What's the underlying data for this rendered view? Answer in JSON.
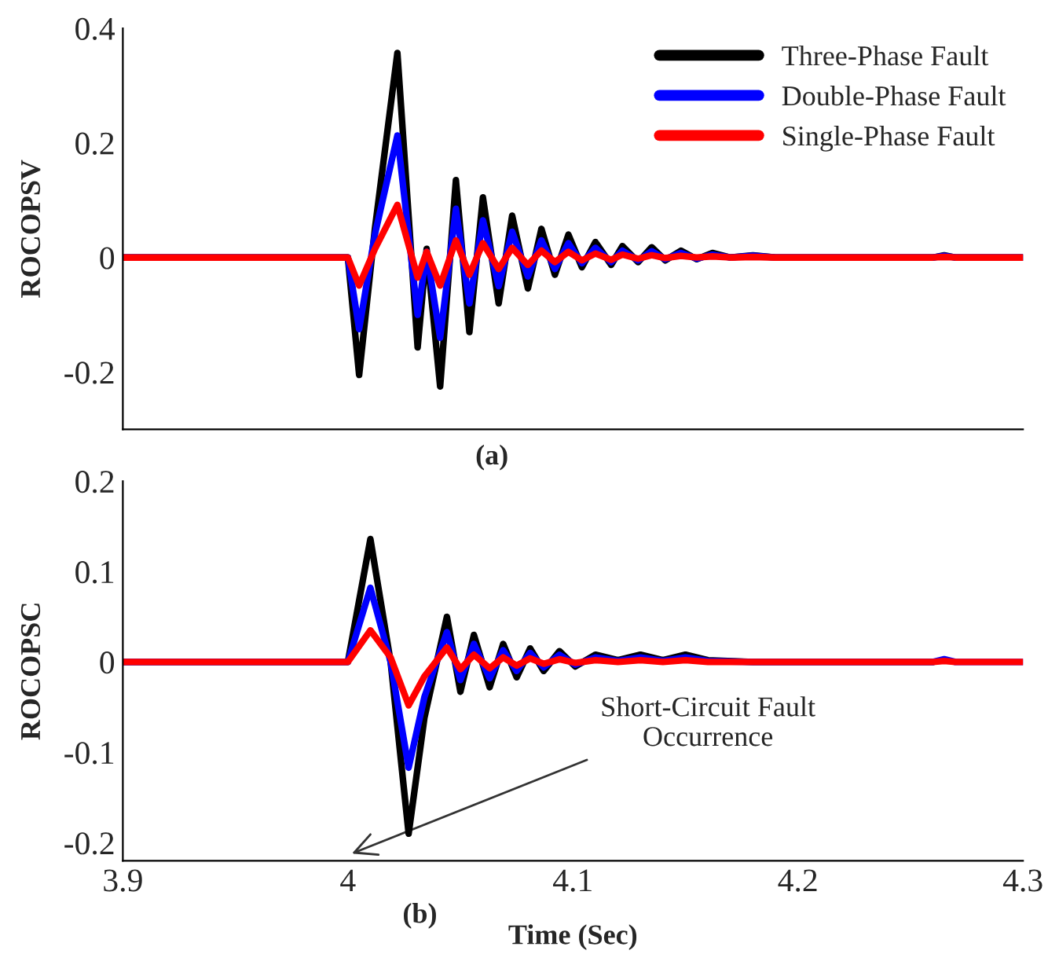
{
  "chart_data": [
    {
      "type": "line",
      "ylabel": "ROCOPSV",
      "annotations": [
        "(a)"
      ],
      "xlim": [
        3.9,
        4.3
      ],
      "xticks": [
        3.9,
        4,
        4.1,
        4.2,
        4.3
      ],
      "ylim": [
        -0.3,
        0.4
      ],
      "yticks": [
        -0.2,
        0,
        0.2,
        0.4
      ],
      "tick_labels": "y",
      "grid": false,
      "legend": "top right",
      "marker": "none",
      "line_style": "solid",
      "series": [
        {
          "name": "Three-Phase Fault",
          "color": "#000000",
          "x": [
            3.9,
            4.0,
            4.005,
            4.012,
            4.022,
            4.031,
            4.035,
            4.041,
            4.048,
            4.054,
            4.06,
            4.067,
            4.073,
            4.08,
            4.086,
            4.092,
            4.098,
            4.104,
            4.11,
            4.117,
            4.122,
            4.129,
            4.135,
            4.141,
            4.148,
            4.155,
            4.162,
            4.17,
            4.18,
            4.19,
            4.26,
            4.265,
            4.27,
            4.3
          ],
          "values": [
            0,
            0,
            -0.205,
            0.05,
            0.357,
            -0.157,
            0.015,
            -0.225,
            0.135,
            -0.13,
            0.105,
            -0.08,
            0.073,
            -0.054,
            0.05,
            -0.03,
            0.04,
            -0.017,
            0.027,
            -0.013,
            0.02,
            -0.008,
            0.018,
            -0.005,
            0.012,
            -0.003,
            0.008,
            0,
            0.004,
            0,
            0,
            0.004,
            0,
            0
          ]
        },
        {
          "name": "Double-Phase Fault",
          "color": "#0000ff",
          "x": [
            3.9,
            4.0,
            4.005,
            4.012,
            4.022,
            4.031,
            4.035,
            4.041,
            4.048,
            4.054,
            4.06,
            4.067,
            4.073,
            4.08,
            4.086,
            4.092,
            4.098,
            4.104,
            4.11,
            4.117,
            4.122,
            4.129,
            4.135,
            4.141,
            4.148,
            4.155,
            4.162,
            4.17,
            4.18,
            4.19,
            4.26,
            4.265,
            4.27,
            4.3
          ],
          "values": [
            0,
            0,
            -0.125,
            0.04,
            0.213,
            -0.1,
            0.01,
            -0.14,
            0.085,
            -0.08,
            0.065,
            -0.05,
            0.045,
            -0.033,
            0.03,
            -0.02,
            0.025,
            -0.01,
            0.017,
            -0.008,
            0.012,
            -0.005,
            0.011,
            -0.003,
            0.008,
            -0.002,
            0.005,
            0,
            0.003,
            0,
            0,
            0.003,
            0,
            0
          ]
        },
        {
          "name": "Single-Phase Fault",
          "color": "#ff0000",
          "x": [
            3.9,
            4.0,
            4.005,
            4.012,
            4.022,
            4.031,
            4.035,
            4.041,
            4.048,
            4.054,
            4.06,
            4.067,
            4.073,
            4.08,
            4.086,
            4.092,
            4.098,
            4.104,
            4.11,
            4.117,
            4.122,
            4.129,
            4.135,
            4.141,
            4.148,
            4.155,
            4.162,
            4.17,
            4.18,
            4.19,
            4.26,
            4.265,
            4.27,
            4.3
          ],
          "values": [
            0,
            0,
            -0.049,
            0.015,
            0.092,
            -0.035,
            0.01,
            -0.049,
            0.03,
            -0.03,
            0.025,
            -0.02,
            0.017,
            -0.013,
            0.012,
            -0.008,
            0.01,
            -0.005,
            0.007,
            -0.004,
            0.005,
            -0.002,
            0.004,
            -0.001,
            0.003,
            0,
            0.002,
            0,
            0.001,
            0,
            0,
            0.001,
            0,
            0
          ]
        }
      ]
    },
    {
      "type": "line",
      "ylabel": "ROCOPSC",
      "xlabel": "Time (Sec)",
      "annotations": [
        "(b)",
        "Short-Circuit Fault\nOccurrence"
      ],
      "xlim": [
        3.9,
        4.3
      ],
      "xticks": [
        3.9,
        4,
        4.1,
        4.2,
        4.3
      ],
      "ylim": [
        -0.22,
        0.2
      ],
      "yticks": [
        -0.2,
        -0.1,
        0,
        0.1,
        0.2
      ],
      "grid": false,
      "legend": false,
      "marker": "none",
      "line_style": "solid",
      "series": [
        {
          "color": "#000000",
          "x": [
            3.9,
            4.0,
            4.01,
            4.019,
            4.027,
            4.034,
            4.044,
            4.05,
            4.056,
            4.063,
            4.069,
            4.075,
            4.081,
            4.087,
            4.094,
            4.101,
            4.11,
            4.12,
            4.13,
            4.14,
            4.15,
            4.16,
            4.18,
            4.26
          ],
          "values": [
            0,
            0,
            0.136,
            0,
            -0.19,
            -0.062,
            0.05,
            -0.033,
            0.03,
            -0.028,
            0.02,
            -0.017,
            0.015,
            -0.01,
            0.012,
            -0.005,
            0.008,
            0.002,
            0.008,
            0.002,
            0.008,
            0.002,
            0,
            0
          ]
        },
        {
          "color": "#0000ff",
          "x": [
            3.9,
            4.0,
            4.01,
            4.019,
            4.027,
            4.034,
            4.044,
            4.05,
            4.056,
            4.063,
            4.069,
            4.075,
            4.081,
            4.087,
            4.094,
            4.101,
            4.11,
            4.12,
            4.13,
            4.14,
            4.15,
            4.16,
            4.18,
            4.26,
            4.265,
            4.27,
            4.3
          ],
          "values": [
            0,
            0,
            0.082,
            0,
            -0.117,
            -0.039,
            0.033,
            -0.02,
            0.02,
            -0.018,
            0.013,
            -0.01,
            0.01,
            -0.006,
            0.008,
            -0.003,
            0.005,
            0.001,
            0.005,
            0.001,
            0.005,
            0.001,
            0,
            0,
            0.003,
            0,
            0
          ]
        },
        {
          "color": "#ff0000",
          "x": [
            3.9,
            4.0,
            4.01,
            4.019,
            4.027,
            4.034,
            4.044,
            4.05,
            4.056,
            4.063,
            4.069,
            4.075,
            4.081,
            4.087,
            4.094,
            4.101,
            4.11,
            4.12,
            4.13,
            4.14,
            4.15,
            4.16,
            4.18,
            4.26,
            4.265,
            4.27,
            4.3
          ],
          "values": [
            0,
            0,
            0.035,
            0.005,
            -0.048,
            -0.016,
            0.016,
            -0.008,
            0.008,
            -0.007,
            0.005,
            -0.004,
            0.004,
            -0.002,
            0.003,
            -0.001,
            0.002,
            0,
            0.002,
            0,
            0.002,
            0,
            0,
            0,
            0.001,
            0,
            0
          ]
        }
      ]
    }
  ]
}
